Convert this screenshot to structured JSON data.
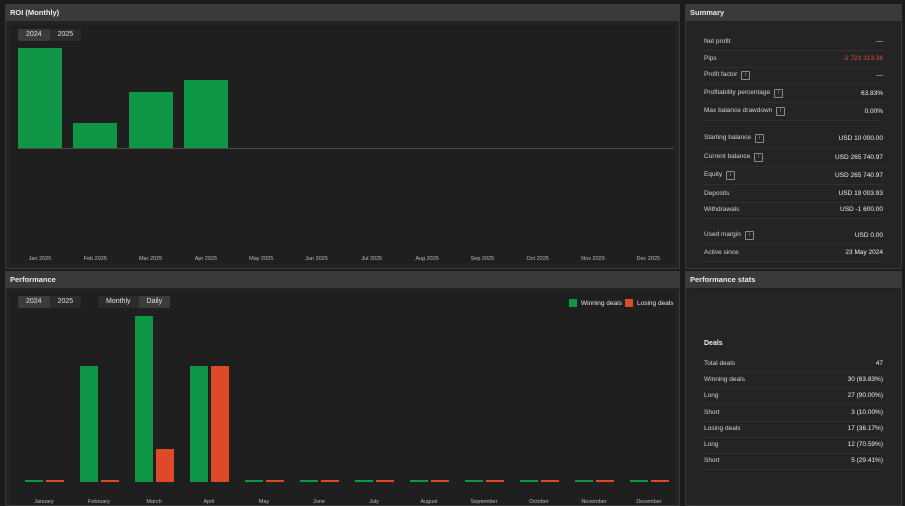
{
  "roi": {
    "title": "ROI (Monthly)",
    "years": [
      "2024",
      "2025"
    ],
    "active_year": "2025"
  },
  "performance": {
    "title": "Performance",
    "years": [
      "2024",
      "2025"
    ],
    "modes": [
      "Monthly",
      "Daily"
    ],
    "legend": {
      "winning": "Winning deals",
      "losing": "Losing deals"
    }
  },
  "summary": {
    "title": "Summary",
    "rows": [
      {
        "label": "Net profit",
        "value": "—",
        "info": false
      },
      {
        "label": "Pips",
        "value": "-2 723 313.36",
        "info": false,
        "negative": true
      },
      {
        "label": "Profit factor",
        "value": "—",
        "info": true
      },
      {
        "label": "Profitability percentage",
        "value": "63.83%",
        "info": true
      },
      {
        "label": "Max balance drawdown",
        "value": "0.00%",
        "info": true
      },
      {
        "label": "Starting balance",
        "value": "USD 10 000.00",
        "info": true
      },
      {
        "label": "Current balance",
        "value": "USD 265 740.97",
        "info": true
      },
      {
        "label": "Equity",
        "value": "USD 265 740.97",
        "info": true
      },
      {
        "label": "Deposits",
        "value": "USD 19 003.93",
        "info": false
      },
      {
        "label": "Withdrawals",
        "value": "USD -1 600.00",
        "info": false
      },
      {
        "label": "Used margin",
        "value": "USD 0.00",
        "info": true
      },
      {
        "label": "Active since",
        "value": "23 May 2024",
        "info": false
      }
    ]
  },
  "stats": {
    "title": "Performance stats",
    "deals_title": "Deals",
    "rows": [
      {
        "label": "Total deals",
        "value": "47"
      },
      {
        "label": "Winning deals",
        "value": "30 (63.83%)"
      },
      {
        "label": "Long",
        "value": "27 (90.00%)"
      },
      {
        "label": "Short",
        "value": "3 (10.00%)"
      },
      {
        "label": "Losing deals",
        "value": "17 (36.17%)"
      },
      {
        "label": "Long",
        "value": "12 (70.59%)"
      },
      {
        "label": "Short",
        "value": "5 (29.41%)"
      }
    ]
  },
  "chart_data": [
    {
      "type": "bar",
      "title": "ROI (Monthly)",
      "categories": [
        "Jan 2025",
        "Feb 2025",
        "Mar 2025",
        "Apr 2025",
        "May 2025",
        "Jun 2025",
        "Jul 2025",
        "Aug 2025",
        "Sep 2025",
        "Oct 2025",
        "Nov 2025",
        "Dec 2025"
      ],
      "values": [
        100,
        25,
        56,
        68,
        0,
        0,
        0,
        0,
        0,
        0,
        0,
        0
      ],
      "ylim": [
        0,
        100
      ],
      "grid": false,
      "colors": {
        "positive": "#0f9747"
      }
    },
    {
      "type": "bar",
      "title": "Performance",
      "categories": [
        "January",
        "February",
        "March",
        "April",
        "May",
        "June",
        "July",
        "August",
        "September",
        "October",
        "November",
        "December"
      ],
      "series": [
        {
          "name": "Winning deals",
          "color": "#0f9747",
          "values": [
            0,
            7,
            10,
            7,
            0,
            0,
            0,
            0,
            0,
            0,
            0,
            0
          ]
        },
        {
          "name": "Losing deals",
          "color": "#dd4a2a",
          "values": [
            0,
            0,
            2,
            7,
            0,
            0,
            0,
            0,
            0,
            0,
            0,
            0
          ]
        }
      ],
      "ylim": [
        0,
        10
      ],
      "legend": "top-right",
      "grid": false
    }
  ]
}
